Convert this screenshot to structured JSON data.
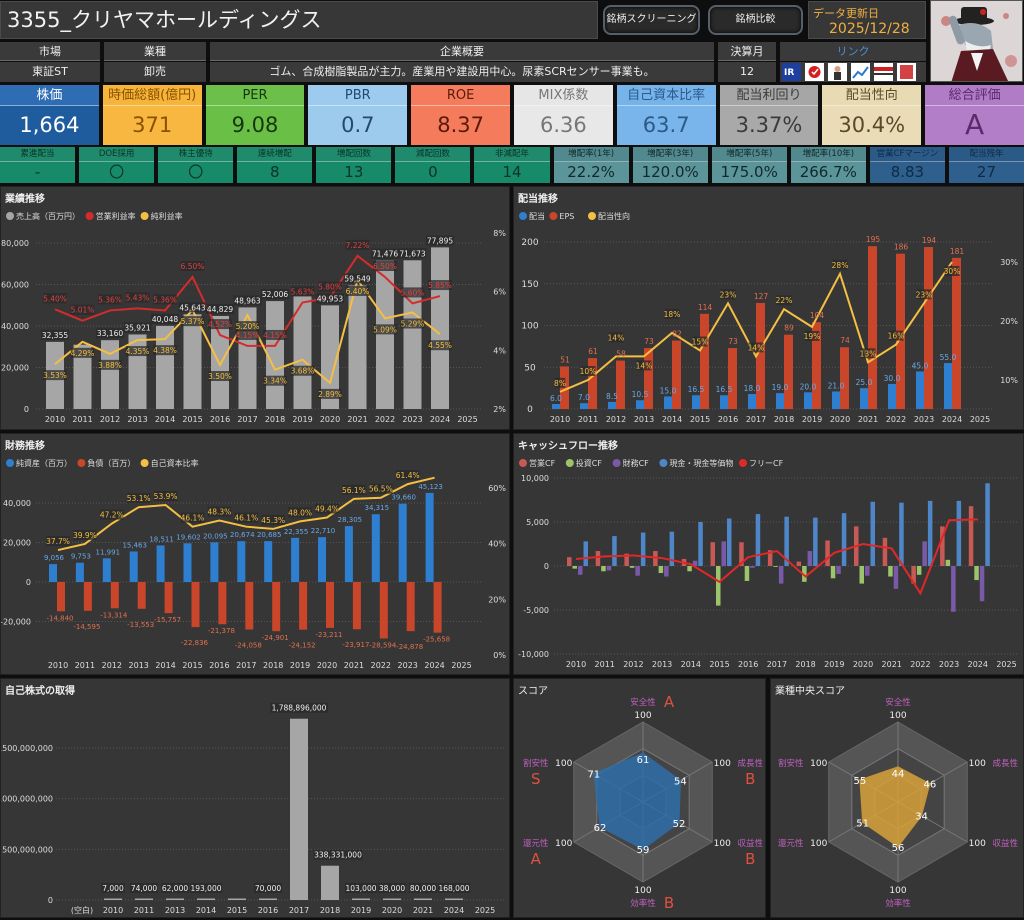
{
  "header": {
    "title": "3355_クリヤマホールディングス",
    "buttons": [
      "銘柄スクリーニング",
      "銘柄比較"
    ],
    "update_label": "データ更新日",
    "update_date": "2025/12/28"
  },
  "info": {
    "market": {
      "label": "市場",
      "value": "東証ST"
    },
    "industry": {
      "label": "業種",
      "value": "卸売"
    },
    "overview": {
      "label": "企業概要",
      "value": "ゴム、合成樹脂製品が主力。産業用や建設用中心。尿素SCRセンサー事業も。"
    },
    "fiscal_month": {
      "label": "決算月",
      "value": "12"
    },
    "links": {
      "label": "リンク",
      "icons": [
        "ir-bank-icon",
        "minkabu-icon",
        "person-icon",
        "chart-icon",
        "kabutan-icon",
        "yutai-icon"
      ],
      "color": "#4a90d9"
    }
  },
  "metrics": [
    {
      "label": "株価",
      "value": "1,664",
      "hbg": "#2e6db4",
      "bg": "#1f5c9e",
      "fg": "#ffffff"
    },
    {
      "label": "時価総額(億円)",
      "value": "371",
      "hbg": "#f6b43a",
      "bg": "#f7b740",
      "fg": "#8a5200"
    },
    {
      "label": "PER",
      "value": "9.08",
      "hbg": "#6cc04a",
      "bg": "#6ac047",
      "fg": "#17360c"
    },
    {
      "label": "PBR",
      "value": "0.7",
      "hbg": "#9ccbef",
      "bg": "#9dcbee",
      "fg": "#234a6e"
    },
    {
      "label": "ROE",
      "value": "8.37",
      "hbg": "#f47c5c",
      "bg": "#f47b5b",
      "fg": "#5a1a0a"
    },
    {
      "label": "MIX係数",
      "value": "6.36",
      "hbg": "#e6e6e6",
      "bg": "#e8e8e8",
      "fg": "#777777"
    },
    {
      "label": "自己資本比率",
      "value": "63.7",
      "hbg": "#76b3ea",
      "bg": "#79b5ea",
      "fg": "#2a5a88"
    },
    {
      "label": "配当利回り",
      "value": "3.37%",
      "hbg": "#a6a6a6",
      "bg": "#a9a9a9",
      "fg": "#3a3a3a"
    },
    {
      "label": "配当性向",
      "value": "30.4%",
      "hbg": "#e8dbb4",
      "bg": "#e9dcb6",
      "fg": "#5a4a2a"
    },
    {
      "label": "総合評価",
      "value": "A",
      "hbg": "#b07cc6",
      "bg": "#b27ec8",
      "fg": "#5a2a6a"
    }
  ],
  "sub_metrics": [
    {
      "label": "累進配当",
      "value": "-",
      "group": "green"
    },
    {
      "label": "DOE採用",
      "value": "〇",
      "group": "green"
    },
    {
      "label": "株主優待",
      "value": "〇",
      "group": "green"
    },
    {
      "label": "連続増配",
      "value": "8",
      "group": "green"
    },
    {
      "label": "増配回数",
      "value": "13",
      "group": "green"
    },
    {
      "label": "減配回数",
      "value": "0",
      "group": "green"
    },
    {
      "label": "非減配年",
      "value": "14",
      "group": "green"
    },
    {
      "label": "増配率(1年)",
      "value": "22.2%",
      "group": "teal"
    },
    {
      "label": "増配率(3年)",
      "value": "120.0%",
      "group": "teal"
    },
    {
      "label": "増配率(5年)",
      "value": "175.0%",
      "group": "teal"
    },
    {
      "label": "増配率(10年)",
      "value": "266.7%",
      "group": "teal"
    },
    {
      "label": "営業CFマージン",
      "value": "8.83",
      "group": "blue"
    },
    {
      "label": "配当残年",
      "value": "27",
      "group": "blue"
    }
  ],
  "sub_colors": {
    "green": {
      "hbg": "#1f8a6c",
      "bg": "#178a6a",
      "fg": "#0b3326"
    },
    "teal": {
      "hbg": "#52898e",
      "bg": "#5b9499",
      "fg": "#10292b"
    },
    "blue": {
      "hbg": "#2c5a86",
      "bg": "#2f5f8c",
      "fg": "#0f2a44"
    }
  },
  "chart_data": [
    {
      "type": "bar+line",
      "title": "業績推移",
      "categories": [
        "2010",
        "2011",
        "2012",
        "2013",
        "2014",
        "2015",
        "2016",
        "2017",
        "2018",
        "2019",
        "2020",
        "2021",
        "2022",
        "2023",
        "2024",
        "2025"
      ],
      "ylim": [
        0,
        80000
      ],
      "yticks": [
        0,
        20000,
        40000,
        60000,
        80000
      ],
      "y2lim": [
        2,
        8
      ],
      "y2ticks": [
        2,
        4,
        6,
        8
      ],
      "grid": true,
      "legend": "top-left",
      "series": [
        {
          "name": "売上高（百万円）",
          "type": "bar",
          "color": "#a6a6a6",
          "values": [
            32355,
            31000,
            33160,
            35921,
            40048,
            45643,
            44829,
            48963,
            52006,
            54500,
            49953,
            59549,
            71476,
            71673,
            77895,
            null
          ],
          "labels": [
            "32,355",
            "",
            "33,160",
            "35,921",
            "40,048",
            "45,643",
            "44,829",
            "48,963",
            "52,006",
            "",
            "49,953",
            "59,549",
            "71,476",
            "71,673",
            "77,895",
            ""
          ]
        },
        {
          "name": "営業利益率",
          "type": "line",
          "axis": "right",
          "color": "#d42c2c",
          "values": [
            5.4,
            5.01,
            5.36,
            5.43,
            5.36,
            6.5,
            4.52,
            4.15,
            4.15,
            5.63,
            5.8,
            7.22,
            6.5,
            5.6,
            5.85,
            null
          ]
        },
        {
          "name": "純利益率",
          "type": "line",
          "axis": "right",
          "color": "#f4bf42",
          "values": [
            3.53,
            4.29,
            3.88,
            4.35,
            4.38,
            5.37,
            3.5,
            5.2,
            3.34,
            3.68,
            2.89,
            6.4,
            5.09,
            5.29,
            4.55,
            null
          ]
        }
      ]
    },
    {
      "type": "bar+line",
      "title": "配当推移",
      "categories": [
        "2010",
        "2011",
        "2012",
        "2013",
        "2014",
        "2015",
        "2016",
        "2017",
        "2018",
        "2019",
        "2020",
        "2021",
        "2022",
        "2023",
        "2024",
        "2025"
      ],
      "ylim": [
        0,
        200
      ],
      "yticks": [
        0,
        50,
        100,
        150,
        200
      ],
      "y2ticks": [
        10,
        20,
        30
      ],
      "grid": true,
      "legend": "top-left",
      "series": [
        {
          "name": "配当",
          "type": "bar",
          "color": "#2f7fd0",
          "values": [
            6.0,
            7.0,
            8.5,
            10.5,
            15.0,
            16.5,
            16.5,
            18.0,
            19.0,
            20.0,
            21.0,
            25.0,
            30.0,
            45.0,
            55.0,
            null
          ]
        },
        {
          "name": "EPS",
          "type": "bar",
          "color": "#c9462a",
          "values": [
            51,
            61,
            58,
            73,
            82,
            114,
            73,
            127,
            89,
            104,
            74,
            195,
            186,
            194,
            181,
            null
          ]
        },
        {
          "name": "配当性向",
          "type": "line",
          "axis": "right",
          "color": "#f4bf42",
          "values": [
            8,
            10,
            14,
            14,
            18,
            15,
            23,
            14,
            22,
            19,
            28,
            13,
            16,
            23,
            30,
            null
          ]
        }
      ]
    },
    {
      "type": "bar+line",
      "title": "財務推移",
      "categories": [
        "2010",
        "2011",
        "2012",
        "2013",
        "2014",
        "2015",
        "2016",
        "2017",
        "2018",
        "2019",
        "2020",
        "2021",
        "2022",
        "2023",
        "2024",
        "2025"
      ],
      "yticks": [
        -20000,
        0,
        20000,
        40000
      ],
      "y2ticks": [
        0,
        20,
        40,
        60
      ],
      "grid": true,
      "legend": "top-left",
      "series": [
        {
          "name": "純資産（百万）",
          "type": "bar",
          "color": "#2f7fd0",
          "values": [
            9056,
            9753,
            11991,
            15463,
            18511,
            19602,
            20095,
            20674,
            20685,
            22355,
            22710,
            28305,
            34315,
            39660,
            45123,
            null
          ]
        },
        {
          "name": "負債（百万）",
          "type": "bar",
          "color": "#c9462a",
          "values": [
            -14840,
            -14595,
            -13314,
            -13553,
            -15757,
            -22836,
            -21378,
            -24058,
            -24901,
            -24152,
            -23211,
            -23917,
            -28594,
            -24878,
            -25658,
            null
          ]
        },
        {
          "name": "自己資本比率",
          "type": "line",
          "axis": "right",
          "color": "#f4bf42",
          "values": [
            37.7,
            39.9,
            47.2,
            53.1,
            53.9,
            46.1,
            48.3,
            46.1,
            45.3,
            48.0,
            49.4,
            56.1,
            56.5,
            61.4,
            63.7,
            null
          ],
          "labels": [
            "37.7%",
            "39.9%",
            "47.2%",
            "53.1%",
            "53.9%",
            "46.1%",
            "48.3%",
            "46.1%",
            "45.3%",
            "48.0%",
            "49.4%",
            "56.1%",
            "56.5%",
            "61.4%",
            "",
            ""
          ]
        }
      ]
    },
    {
      "type": "bar+line",
      "title": "キャッシュフロー推移",
      "categories": [
        "2010",
        "2011",
        "2012",
        "2013",
        "2014",
        "2015",
        "2016",
        "2017",
        "2018",
        "2019",
        "2020",
        "2021",
        "2022",
        "2023",
        "2024",
        "2025"
      ],
      "ylim": [
        -10000,
        10000
      ],
      "yticks": [
        -10000,
        -5000,
        0,
        5000,
        10000
      ],
      "grid": true,
      "legend": "top-left",
      "series": [
        {
          "name": "営業CF",
          "type": "bar",
          "color": "#c85a55",
          "values": [
            1000,
            1700,
            1400,
            1700,
            800,
            2700,
            2700,
            1800,
            500,
            2900,
            4500,
            3200,
            -2000,
            4500,
            6800,
            null
          ]
        },
        {
          "name": "投資CF",
          "type": "bar",
          "color": "#9cc46a",
          "values": [
            -300,
            -600,
            -200,
            -800,
            -600,
            -4500,
            -1700,
            -100,
            -1800,
            -1400,
            -2000,
            -1200,
            -1000,
            700,
            -1600,
            null
          ]
        },
        {
          "name": "財務CF",
          "type": "bar",
          "color": "#7a5aa8",
          "values": [
            -1000,
            -500,
            -1100,
            -1200,
            600,
            2800,
            -200,
            -2000,
            1700,
            -900,
            -1100,
            -2600,
            2800,
            -5200,
            -4000,
            null
          ]
        },
        {
          "name": "現金・現金等価物",
          "type": "bar",
          "color": "#4f86c8",
          "values": [
            2800,
            3400,
            3800,
            3900,
            5000,
            5400,
            5900,
            5600,
            5500,
            6000,
            7300,
            7200,
            7400,
            7400,
            9400,
            null
          ]
        },
        {
          "name": "フリーCF",
          "type": "line",
          "color": "#e02828",
          "values": [
            800,
            1100,
            1200,
            900,
            200,
            -1800,
            1000,
            1700,
            -1200,
            1500,
            2500,
            2000,
            -3100,
            5200,
            5300,
            null
          ]
        }
      ]
    },
    {
      "type": "bar",
      "title": "自己株式の取得",
      "categories": [
        "(空白)",
        "2010",
        "2011",
        "2013",
        "2014",
        "2015",
        "2016",
        "2017",
        "2018",
        "2019",
        "2020",
        "2021",
        "2024",
        "2025"
      ],
      "ylim": [
        0,
        1900000000
      ],
      "yticks": [
        0,
        500000000,
        1000000000,
        1500000000
      ],
      "grid": true,
      "values": [
        null,
        7000,
        74000,
        62000,
        193000,
        1000,
        70000,
        1788896000,
        338331000,
        103000,
        38000,
        80000,
        168000,
        null
      ],
      "labels": [
        "",
        "7,000",
        "74,000",
        "62,000",
        "193,000",
        "",
        "70,000",
        "1,788,896,000",
        "338,331,000",
        "103,000",
        "38,000",
        "80,000",
        "168,000",
        ""
      ],
      "color": "#a6a6a6"
    },
    {
      "type": "radar",
      "title": "スコア",
      "axes": [
        "安全性",
        "成長性",
        "収益性",
        "効率性",
        "還元性",
        "割安性"
      ],
      "max": 100,
      "max_label": "100",
      "values": [
        61,
        54,
        52,
        59,
        62,
        71
      ],
      "grades": [
        "A",
        "B",
        "B",
        "B",
        "A",
        "S"
      ],
      "color": "#2f6ea8"
    },
    {
      "type": "radar",
      "title": "業種中央スコア",
      "axes": [
        "安全性",
        "成長性",
        "収益性",
        "効率性",
        "還元性",
        "割安性"
      ],
      "max": 100,
      "max_label": "100",
      "values": [
        44,
        46,
        34,
        56,
        51,
        55
      ],
      "color": "#d8a23a"
    }
  ]
}
